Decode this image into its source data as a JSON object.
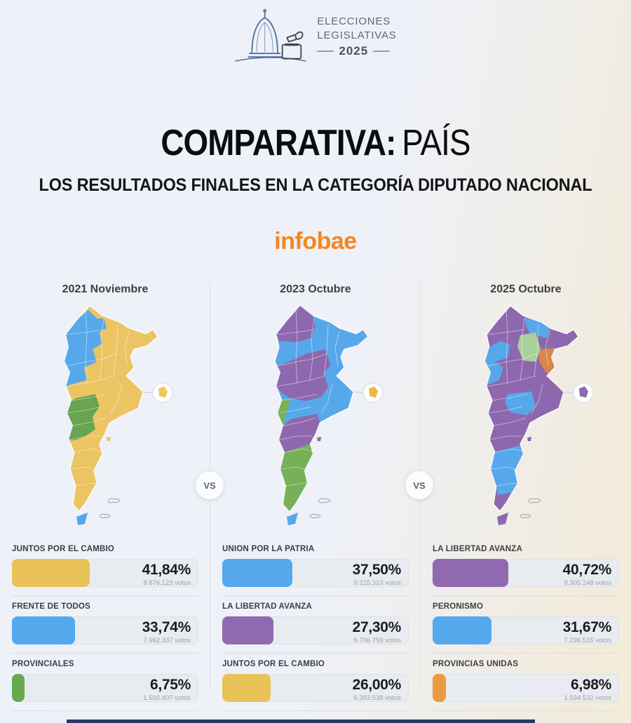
{
  "logo": {
    "line1": "ELECCIONES",
    "line2": "LEGISLATIVAS",
    "year": "2025"
  },
  "header": {
    "title_strong": "COMPARATIVA:",
    "title_light": "PAÍS",
    "subtitle": "LOS RESULTADOS FINALES EN LA CATEGORÍA DIPUTADO NACIONAL"
  },
  "brand": {
    "name": "infobae",
    "color": "#f5861f"
  },
  "vs": {
    "label": "VS"
  },
  "chart_data": [
    {
      "type": "bar",
      "title": "2021 Noviembre",
      "categories": [
        "JUNTOS POR EL CAMBIO",
        "FRENTE DE TODOS",
        "PROVINCIALES"
      ],
      "values": [
        41.84,
        33.74,
        6.75
      ],
      "value_labels": [
        "41,84%",
        "33,74%",
        "6,75%"
      ],
      "votes": [
        "9.876.123 votos",
        "7.962.337 votos",
        "1.592.407 votos"
      ],
      "colors": [
        "#e9c258",
        "#56a8ec",
        "#6aa84f"
      ],
      "xlim": [
        0,
        100
      ]
    },
    {
      "type": "bar",
      "title": "2023 Octubre",
      "categories": [
        "UNION POR LA PATRIA",
        "LA LIBERTAD AVANZA",
        "JUNTOS POR EL CAMBIO"
      ],
      "values": [
        37.5,
        27.3,
        26.0
      ],
      "value_labels": [
        "37,50%",
        "27,30%",
        "26,00%"
      ],
      "votes": [
        "9.215.313 votos",
        "6.706.759 votos",
        "6.393.538 votos"
      ],
      "colors": [
        "#56a8ec",
        "#9169ae",
        "#e9c258"
      ],
      "xlim": [
        0,
        100
      ]
    },
    {
      "type": "bar",
      "title": "2025 Octubre",
      "categories": [
        "LA LIBERTAD AVANZA",
        "PERONISMO",
        "PROVINCIAS UNIDAS"
      ],
      "values": [
        40.72,
        31.67,
        6.98
      ],
      "value_labels": [
        "40,72%",
        "31,67%",
        "6,98%"
      ],
      "votes": [
        "9.305.248 votos",
        "7.236.515 votos",
        "1.594.532 votos"
      ],
      "colors": [
        "#9169ae",
        "#56a8ec",
        "#eb9b3d"
      ],
      "xlim": [
        0,
        100
      ]
    }
  ],
  "columns": [
    {
      "header": "2021 Noviembre",
      "map": {
        "base": "#ecc464",
        "tdf": "#57a8ea",
        "caba": "#edc85f",
        "islet": "#ecc464",
        "patches": {
          "northwest": "#57a8ea",
          "patagonia": "#68a451"
        }
      },
      "results": [
        {
          "party": "JUNTOS POR EL CAMBIO",
          "pct": "41,84%",
          "votes": "9.876.123 votos",
          "color": "#e9c258",
          "value": 41.84
        },
        {
          "party": "FRENTE DE TODOS",
          "pct": "33,74%",
          "votes": "7.962.337 votos",
          "color": "#56a8ec",
          "value": 33.74
        },
        {
          "party": "PROVINCIALES",
          "pct": "6,75%",
          "votes": "1.592.407 votos",
          "color": "#6aa84f",
          "value": 6.75
        }
      ]
    },
    {
      "header": "2023 Octubre",
      "map": {
        "base": "#57a8ea",
        "tdf": "#57a8ea",
        "caba": "#f0b54a",
        "islet": "#8e68ae",
        "patches": {
          "north": "#8e68ae",
          "center": "#8e68ae",
          "cuyo": "#76b159",
          "rio_negro": "#8e68ae",
          "south": "#76b159"
        }
      },
      "results": [
        {
          "party": "UNION POR LA PATRIA",
          "pct": "37,50%",
          "votes": "9.215.313 votos",
          "color": "#56a8ec",
          "value": 37.5
        },
        {
          "party": "LA LIBERTAD AVANZA",
          "pct": "27,30%",
          "votes": "6.706.759 votos",
          "color": "#9169ae",
          "value": 27.3
        },
        {
          "party": "JUNTOS POR EL CAMBIO",
          "pct": "26,00%",
          "votes": "6.393.538 votos",
          "color": "#e9c258",
          "value": 26.0
        }
      ]
    },
    {
      "header": "2025 Octubre",
      "map": {
        "base": "#8e68ae",
        "tdf": "#8e68ae",
        "caba": "#8e68ae",
        "islet": "#8e68ae",
        "patches": {
          "formosa": "#57a8ea",
          "santiago": "#a9cf9b",
          "corrientes": "#d9864a",
          "tucuman": "#57a8ea",
          "cuyo": "#57a8ea",
          "la_pampa": "#57a8ea",
          "santa_cruz": "#57a8ea"
        }
      },
      "results": [
        {
          "party": "LA LIBERTAD AVANZA",
          "pct": "40,72%",
          "votes": "9.305.248 votos",
          "color": "#9169ae",
          "value": 40.72
        },
        {
          "party": "PERONISMO",
          "pct": "31,67%",
          "votes": "7.236.515 votos",
          "color": "#56a8ec",
          "value": 31.67
        },
        {
          "party": "PROVINCIAS UNIDAS",
          "pct": "6,98%",
          "votes": "1.594.532 votos",
          "color": "#eb9b3d",
          "value": 6.98
        }
      ]
    }
  ]
}
